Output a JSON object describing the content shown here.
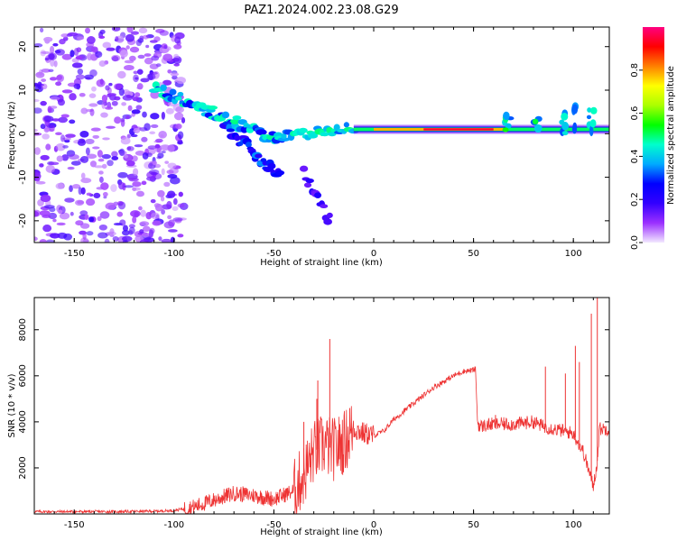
{
  "title": "PAZ1.2024.002.23.08.G29",
  "chart_data": [
    {
      "type": "heatmap",
      "panel": "top",
      "xlabel": "Height of straight line (km)",
      "ylabel": "Frequency (Hz)",
      "xlim": [
        -170,
        118
      ],
      "ylim": [
        -25,
        24.5
      ],
      "xticks": [
        -150,
        -100,
        -50,
        0,
        50,
        100
      ],
      "yticks": [
        -20,
        -10,
        0,
        10,
        20
      ],
      "colorbar": {
        "label": "Normalized spectral amplitude",
        "range": [
          0,
          1
        ],
        "ticks": [
          "0.0",
          "0.2",
          "0.4",
          "0.6",
          "0.8"
        ],
        "colors": [
          "#f2e8ff",
          "#9b30ff",
          "#3300ff",
          "#0000ff",
          "#00aaff",
          "#00ffcc",
          "#00ff00",
          "#aaff00",
          "#ffff00",
          "#ff8000",
          "#ff0000",
          "#ff0080"
        ]
      },
      "features": {
        "carrier_line": {
          "x_start": -10,
          "x_end": 118,
          "freq": 1,
          "peak_amplitude": 0.95
        },
        "descending_arc": {
          "x_start": -110,
          "x_end": -45,
          "freq_start": 10.5,
          "freq_end": -2,
          "amplitude": 0.35
        },
        "secondary_arc": {
          "x_start": -75,
          "x_end": -47,
          "freq_start": 2,
          "freq_end": -10,
          "amplitude": 0.25
        },
        "faint_tail": {
          "x_start": -35,
          "x_end": -22,
          "freq_start": -9,
          "freq_end": -20,
          "amplitude": 0.18
        },
        "noise_region": {
          "x_start": -170,
          "x_end": -95,
          "freq_range": [
            -25,
            24.5
          ],
          "amplitude": 0.12
        },
        "right_bursts": [
          {
            "x": 67,
            "freq": 1.5
          },
          {
            "x": 82,
            "freq": 2.0
          },
          {
            "x": 95,
            "freq": 2.5
          },
          {
            "x": 101,
            "freq": 4.0
          },
          {
            "x": 109,
            "freq": 3.0
          }
        ]
      }
    },
    {
      "type": "line",
      "panel": "bottom",
      "xlabel": "Height of straight line (km)",
      "ylabel": "SNR (10 * v/v)",
      "xlim": [
        -170,
        118
      ],
      "ylim": [
        0,
        9400
      ],
      "xticks": [
        -150,
        -100,
        -50,
        0,
        50,
        100
      ],
      "yticks": [
        2000,
        4000,
        6000,
        8000
      ],
      "series": [
        {
          "color": "#ee3333",
          "x": [
            -170,
            -150,
            -130,
            -110,
            -100,
            -90,
            -80,
            -70,
            -60,
            -50,
            -40,
            -35,
            -30,
            -25,
            -20,
            -15,
            -10,
            -5,
            0,
            5,
            10,
            20,
            30,
            40,
            45,
            50,
            51,
            52,
            53,
            60,
            70,
            80,
            85,
            90,
            95,
            100,
            103,
            105,
            108,
            110,
            112,
            113,
            115,
            118
          ],
          "y": [
            100,
            100,
            100,
            120,
            150,
            300,
            600,
            900,
            800,
            650,
            1000,
            1700,
            2700,
            3000,
            2800,
            3100,
            3700,
            3500,
            3400,
            3600,
            4100,
            4800,
            5500,
            6000,
            6200,
            6250,
            6300,
            4000,
            3800,
            3900,
            3900,
            4000,
            3800,
            3700,
            3600,
            3500,
            3000,
            2700,
            1800,
            1200,
            2300,
            3700,
            3700,
            3700
          ]
        }
      ],
      "spikes": [
        {
          "x": -22,
          "y": 7600
        },
        {
          "x": -28,
          "y": 5800
        },
        {
          "x": -35,
          "y": 4000
        },
        {
          "x": -28.5,
          "y": 5000
        },
        {
          "x": -12,
          "y": 4600
        },
        {
          "x": 61,
          "y": 4300
        },
        {
          "x": 86,
          "y": 6400
        },
        {
          "x": 96,
          "y": 6100
        },
        {
          "x": 101,
          "y": 7300
        },
        {
          "x": 103,
          "y": 6600
        },
        {
          "x": 109,
          "y": 8700
        },
        {
          "x": 112,
          "y": 9400
        }
      ]
    }
  ]
}
